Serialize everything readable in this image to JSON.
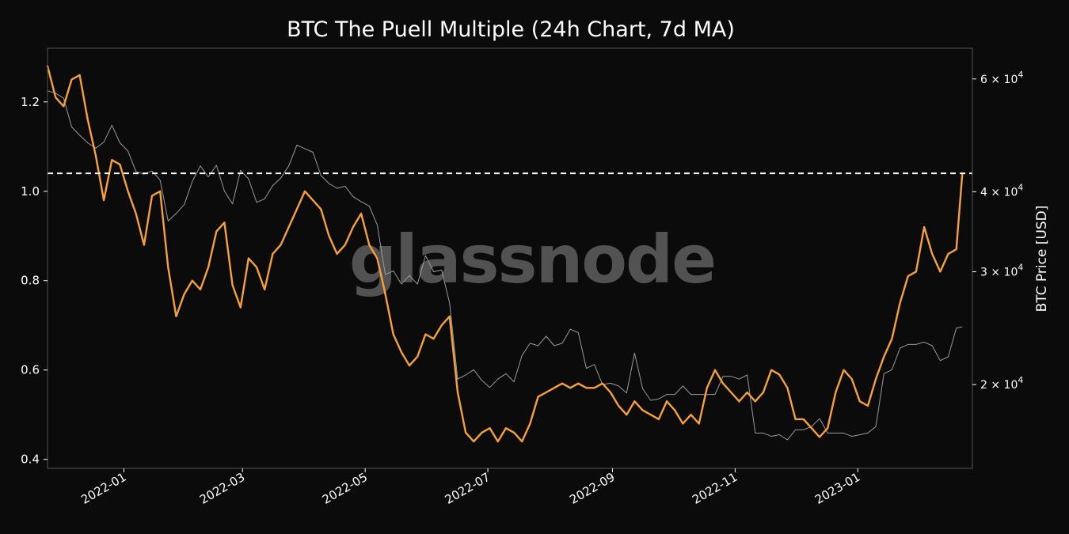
{
  "chart_data": {
    "type": "line",
    "title": "BTC The Puell Multiple (24h Chart, 7d MA)",
    "watermark": "glassnode",
    "xlim": [
      "2021-11-24",
      "2023-02-27"
    ],
    "x_ticks": [
      "2022-01",
      "2022-03",
      "2022-05",
      "2022-07",
      "2022-09",
      "2022-11",
      "2023-01"
    ],
    "y_left": {
      "ylim": [
        0.38,
        1.32
      ],
      "ticks": [
        "0.4",
        "0.6",
        "0.8",
        "1.0",
        "1.2"
      ]
    },
    "y_right": {
      "label": "BTC Price [USD]",
      "scale": "log",
      "ylim": [
        14800,
        67000
      ],
      "ticks": [
        {
          "value": 20000,
          "label": "2 × 10^4"
        },
        {
          "value": 30000,
          "label": "3 × 10^4"
        },
        {
          "value": 40000,
          "label": "4 × 10^4"
        },
        {
          "value": 60000,
          "label": "6 × 10^4"
        }
      ]
    },
    "reference_line": {
      "value": 1.04,
      "style": "dashed",
      "color": "#ffffff"
    },
    "colors": {
      "puell": "#f7a13a",
      "price": "#9a9a9a",
      "background": "#0b0b0b",
      "frame": "#555555"
    },
    "series": [
      {
        "axis": "left",
        "x": [
          "2021-11-24",
          "2021-11-28",
          "2021-12-02",
          "2021-12-06",
          "2021-12-10",
          "2021-12-14",
          "2021-12-18",
          "2021-12-22",
          "2021-12-26",
          "2021-12-30",
          "2022-01-03",
          "2022-01-07",
          "2022-01-11",
          "2022-01-15",
          "2022-01-19",
          "2022-01-23",
          "2022-01-27",
          "2022-01-31",
          "2022-02-04",
          "2022-02-08",
          "2022-02-12",
          "2022-02-16",
          "2022-02-20",
          "2022-02-24",
          "2022-02-28",
          "2022-03-04",
          "2022-03-08",
          "2022-03-12",
          "2022-03-16",
          "2022-03-20",
          "2022-03-24",
          "2022-03-28",
          "2022-04-01",
          "2022-04-05",
          "2022-04-09",
          "2022-04-13",
          "2022-04-17",
          "2022-04-21",
          "2022-04-25",
          "2022-04-29",
          "2022-05-03",
          "2022-05-07",
          "2022-05-11",
          "2022-05-15",
          "2022-05-19",
          "2022-05-23",
          "2022-05-27",
          "2022-05-31",
          "2022-06-04",
          "2022-06-08",
          "2022-06-12",
          "2022-06-16",
          "2022-06-20",
          "2022-06-24",
          "2022-06-28",
          "2022-07-02",
          "2022-07-06",
          "2022-07-10",
          "2022-07-14",
          "2022-07-18",
          "2022-07-22",
          "2022-07-26",
          "2022-07-30",
          "2022-08-03",
          "2022-08-07",
          "2022-08-11",
          "2022-08-15",
          "2022-08-19",
          "2022-08-23",
          "2022-08-27",
          "2022-08-31",
          "2022-09-04",
          "2022-09-08",
          "2022-09-12",
          "2022-09-16",
          "2022-09-20",
          "2022-09-24",
          "2022-09-28",
          "2022-10-02",
          "2022-10-06",
          "2022-10-10",
          "2022-10-14",
          "2022-10-18",
          "2022-10-22",
          "2022-10-26",
          "2022-10-30",
          "2022-11-03",
          "2022-11-07",
          "2022-11-11",
          "2022-11-15",
          "2022-11-19",
          "2022-11-23",
          "2022-11-27",
          "2022-12-01",
          "2022-12-05",
          "2022-12-09",
          "2022-12-13",
          "2022-12-17",
          "2022-12-21",
          "2022-12-25",
          "2022-12-29",
          "2023-01-02",
          "2023-01-06",
          "2023-01-10",
          "2023-01-14",
          "2023-01-18",
          "2023-01-22",
          "2023-01-26",
          "2023-01-30",
          "2023-02-03",
          "2023-02-07",
          "2023-02-11",
          "2023-02-15",
          "2023-02-19",
          "2023-02-22"
        ],
        "values": [
          1.28,
          1.21,
          1.19,
          1.25,
          1.26,
          1.16,
          1.08,
          0.98,
          1.07,
          1.06,
          1.0,
          0.95,
          0.88,
          0.99,
          1.0,
          0.83,
          0.72,
          0.77,
          0.8,
          0.78,
          0.83,
          0.91,
          0.93,
          0.79,
          0.74,
          0.85,
          0.83,
          0.78,
          0.86,
          0.88,
          0.92,
          0.96,
          1.0,
          0.98,
          0.96,
          0.9,
          0.86,
          0.88,
          0.92,
          0.95,
          0.88,
          0.85,
          0.77,
          0.68,
          0.64,
          0.61,
          0.63,
          0.68,
          0.67,
          0.7,
          0.72,
          0.55,
          0.46,
          0.44,
          0.46,
          0.47,
          0.44,
          0.47,
          0.46,
          0.44,
          0.48,
          0.54,
          0.55,
          0.56,
          0.57,
          0.56,
          0.57,
          0.56,
          0.56,
          0.57,
          0.55,
          0.52,
          0.5,
          0.53,
          0.51,
          0.5,
          0.49,
          0.53,
          0.51,
          0.48,
          0.5,
          0.48,
          0.56,
          0.6,
          0.57,
          0.55,
          0.53,
          0.55,
          0.53,
          0.55,
          0.6,
          0.59,
          0.56,
          0.49,
          0.49,
          0.47,
          0.45,
          0.47,
          0.55,
          0.6,
          0.58,
          0.53,
          0.52,
          0.58,
          0.63,
          0.67,
          0.75,
          0.81,
          0.82,
          0.92,
          0.86,
          0.82,
          0.86,
          0.87,
          1.04
        ]
      },
      {
        "axis": "right",
        "x": [
          "2021-11-24",
          "2021-11-28",
          "2021-12-02",
          "2021-12-06",
          "2021-12-10",
          "2021-12-14",
          "2021-12-18",
          "2021-12-22",
          "2021-12-26",
          "2021-12-30",
          "2022-01-03",
          "2022-01-07",
          "2022-01-11",
          "2022-01-15",
          "2022-01-19",
          "2022-01-23",
          "2022-01-27",
          "2022-01-31",
          "2022-02-04",
          "2022-02-08",
          "2022-02-12",
          "2022-02-16",
          "2022-02-20",
          "2022-02-24",
          "2022-02-28",
          "2022-03-04",
          "2022-03-08",
          "2022-03-12",
          "2022-03-16",
          "2022-03-20",
          "2022-03-24",
          "2022-03-28",
          "2022-04-01",
          "2022-04-05",
          "2022-04-09",
          "2022-04-13",
          "2022-04-17",
          "2022-04-21",
          "2022-04-25",
          "2022-04-29",
          "2022-05-03",
          "2022-05-07",
          "2022-05-11",
          "2022-05-15",
          "2022-05-19",
          "2022-05-23",
          "2022-05-27",
          "2022-05-31",
          "2022-06-04",
          "2022-06-08",
          "2022-06-12",
          "2022-06-16",
          "2022-06-20",
          "2022-06-24",
          "2022-06-28",
          "2022-07-02",
          "2022-07-06",
          "2022-07-10",
          "2022-07-14",
          "2022-07-18",
          "2022-07-22",
          "2022-07-26",
          "2022-07-30",
          "2022-08-03",
          "2022-08-07",
          "2022-08-11",
          "2022-08-15",
          "2022-08-19",
          "2022-08-23",
          "2022-08-27",
          "2022-08-31",
          "2022-09-04",
          "2022-09-08",
          "2022-09-12",
          "2022-09-16",
          "2022-09-20",
          "2022-09-24",
          "2022-09-28",
          "2022-10-02",
          "2022-10-06",
          "2022-10-10",
          "2022-10-14",
          "2022-10-18",
          "2022-10-22",
          "2022-10-26",
          "2022-10-30",
          "2022-11-03",
          "2022-11-07",
          "2022-11-11",
          "2022-11-15",
          "2022-11-19",
          "2022-11-23",
          "2022-11-27",
          "2022-12-01",
          "2022-12-05",
          "2022-12-09",
          "2022-12-13",
          "2022-12-17",
          "2022-12-21",
          "2022-12-25",
          "2022-12-29",
          "2023-01-02",
          "2023-01-06",
          "2023-01-10",
          "2023-01-14",
          "2023-01-18",
          "2023-01-22",
          "2023-01-26",
          "2023-01-30",
          "2023-02-03",
          "2023-02-07",
          "2023-02-11",
          "2023-02-15",
          "2023-02-19",
          "2023-02-22"
        ],
        "values": [
          57500,
          57000,
          56000,
          50500,
          49000,
          47700,
          46800,
          47800,
          50800,
          47700,
          46300,
          43000,
          42600,
          43100,
          41700,
          36000,
          37000,
          38200,
          41500,
          43900,
          42200,
          44000,
          40100,
          38300,
          43200,
          41900,
          38500,
          39000,
          40900,
          42000,
          43900,
          47300,
          46700,
          46100,
          42400,
          41200,
          40500,
          40800,
          39300,
          38600,
          38000,
          35500,
          29700,
          30100,
          28700,
          29600,
          28700,
          31800,
          30000,
          30200,
          26800,
          20400,
          20700,
          21100,
          20300,
          19800,
          20400,
          20800,
          20200,
          22200,
          23200,
          23000,
          23800,
          23000,
          23200,
          24400,
          24100,
          21200,
          21500,
          20000,
          20100,
          19900,
          19400,
          22400,
          19700,
          18900,
          19000,
          19300,
          19300,
          19900,
          19300,
          19300,
          19300,
          19300,
          20600,
          20600,
          20400,
          20700,
          16800,
          16800,
          16600,
          16700,
          16400,
          17000,
          17000,
          17200,
          17700,
          16800,
          16800,
          16800,
          16600,
          16700,
          16800,
          17200,
          20800,
          21100,
          22800,
          23100,
          23100,
          23300,
          23000,
          21800,
          22100,
          24500,
          24600
        ]
      }
    ]
  }
}
